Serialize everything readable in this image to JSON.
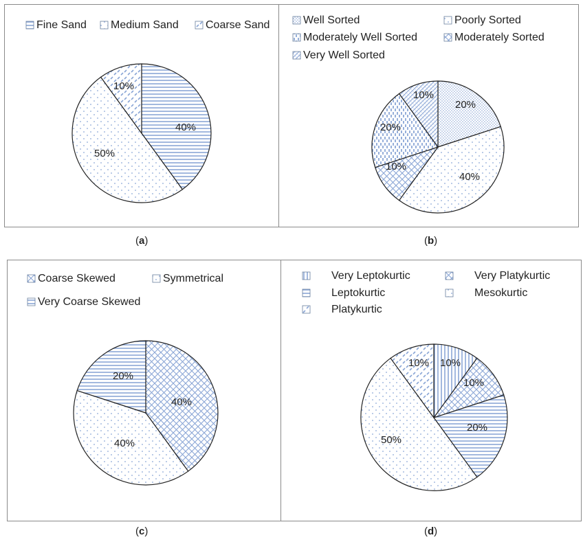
{
  "panels": [
    {
      "caption": "a"
    },
    {
      "caption": "b"
    },
    {
      "caption": "c"
    },
    {
      "caption": "d"
    }
  ],
  "colors": {
    "pattern": "#8aa6d6",
    "outline": "#222222",
    "border": "#8a8a8a"
  },
  "chart_data": [
    {
      "type": "pie",
      "panel": "a",
      "slices": [
        {
          "label": "Fine Sand",
          "value": 40,
          "pattern": "hlines",
          "text": "40%"
        },
        {
          "label": "Medium Sand",
          "value": 50,
          "pattern": "dots",
          "text": "50%"
        },
        {
          "label": "Coarse Sand",
          "value": 10,
          "pattern": "dashdiag",
          "text": "10%"
        }
      ],
      "legend_order": [
        "Fine Sand",
        "Medium Sand",
        "Coarse Sand"
      ]
    },
    {
      "type": "pie",
      "panel": "b",
      "slices": [
        {
          "label": "Well Sorted",
          "value": 20,
          "pattern": "finedots",
          "text": "20%"
        },
        {
          "label": "Poorly Sorted",
          "value": 40,
          "pattern": "dots",
          "text": "40%"
        },
        {
          "label": "Moderately Sorted",
          "value": 10,
          "pattern": "crosshatch",
          "text": "10%"
        },
        {
          "label": "Moderately Well Sorted",
          "value": 20,
          "pattern": "vdash",
          "text": "20%"
        },
        {
          "label": "Very Well Sorted",
          "value": 10,
          "pattern": "diag",
          "text": "10%"
        }
      ],
      "legend_order": [
        "Well Sorted",
        "Poorly Sorted",
        "Moderately Well Sorted",
        "Moderately Sorted",
        "Very Well Sorted"
      ]
    },
    {
      "type": "pie",
      "panel": "c",
      "slices": [
        {
          "label": "Coarse  Skewed",
          "value": 40,
          "pattern": "crosshatch",
          "text": "40%"
        },
        {
          "label": "Symmetrical",
          "value": 40,
          "pattern": "dots",
          "text": "40%"
        },
        {
          "label": "Very Coarse Skewed",
          "value": 20,
          "pattern": "hlines",
          "text": "20%"
        }
      ],
      "legend_order": [
        "Coarse  Skewed",
        "Symmetrical",
        "Very Coarse Skewed"
      ]
    },
    {
      "type": "pie",
      "panel": "d",
      "slices": [
        {
          "label": "Very Leptokurtic",
          "value": 10,
          "pattern": "vlines",
          "text": "10%"
        },
        {
          "label": "Very Platykurtic",
          "value": 10,
          "pattern": "crosshatch",
          "text": "10%"
        },
        {
          "label": "Leptokurtic",
          "value": 20,
          "pattern": "hlines",
          "text": "20%"
        },
        {
          "label": "Mesokurtic",
          "value": 50,
          "pattern": "dots",
          "text": "50%"
        },
        {
          "label": "Platykurtic",
          "value": 10,
          "pattern": "dashdiag",
          "text": "10%"
        }
      ],
      "legend_order": [
        "Very Leptokurtic",
        "Very Platykurtic",
        "Leptokurtic",
        "Mesokurtic",
        "Platykurtic"
      ]
    }
  ]
}
